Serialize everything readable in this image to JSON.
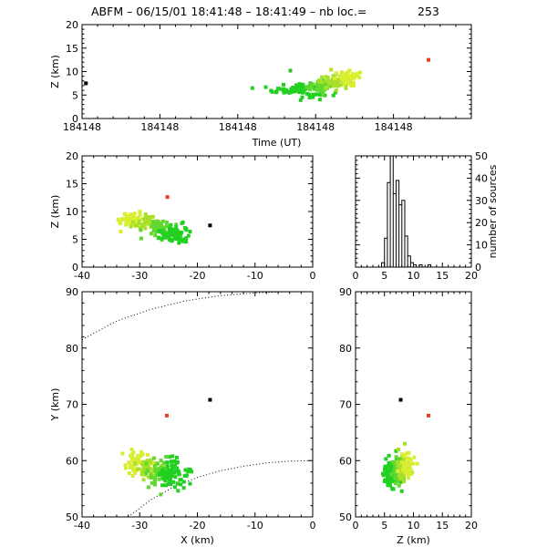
{
  "title": "ABFM – 06/15/01 18:41:48 – 18:41:49 – nb loc.=",
  "count": "253",
  "chart_data": [
    {
      "id": "time_height",
      "type": "scatter",
      "xlabel": "Time (UT)",
      "ylabel": "Z (km)",
      "xlim": [
        0,
        1
      ],
      "ylim": [
        0,
        20
      ],
      "xticks": [
        0.0,
        0.2,
        0.4,
        0.6,
        0.8
      ],
      "xticklabels": [
        "184148",
        "184148",
        "184148",
        "184148",
        "184148"
      ],
      "yticks": [
        0,
        5,
        10,
        15,
        20
      ],
      "points": [
        {
          "x": 0.01,
          "y": 7.5,
          "color": "#000000"
        },
        {
          "x": 0.89,
          "y": 12.5,
          "color": "#e8401c"
        },
        {
          "x": 0.535,
          "y": 10.2,
          "color": "#30c020"
        },
        {
          "x": 0.64,
          "y": 10.4,
          "color": "#b0e020"
        },
        {
          "x": 0.69,
          "y": 9.0,
          "color": "#e0f020"
        }
      ],
      "clusters": [
        {
          "cx": 0.56,
          "cy": 6.2,
          "sx": 0.035,
          "sy": 0.8,
          "n": 90,
          "color": "#22d022"
        },
        {
          "cx": 0.61,
          "cy": 6.9,
          "sx": 0.02,
          "sy": 0.6,
          "n": 40,
          "color": "#60d830"
        },
        {
          "cx": 0.65,
          "cy": 7.8,
          "sx": 0.02,
          "sy": 0.7,
          "n": 45,
          "color": "#a8e028"
        },
        {
          "cx": 0.69,
          "cy": 8.6,
          "sx": 0.02,
          "sy": 0.7,
          "n": 45,
          "color": "#d8ee30"
        }
      ]
    },
    {
      "id": "x_z",
      "type": "scatter",
      "xlabel": "",
      "ylabel": "Z (km)",
      "xlim": [
        -40,
        0
      ],
      "ylim": [
        0,
        20
      ],
      "xticks": [
        -40,
        -30,
        -20,
        -10,
        0
      ],
      "yticks": [
        0,
        5,
        10,
        15,
        20
      ],
      "points": [
        {
          "x": -17.8,
          "y": 7.5,
          "color": "#000000"
        },
        {
          "x": -25.2,
          "y": 12.6,
          "color": "#e8401c"
        }
      ],
      "clusters": [
        {
          "cx": -31.5,
          "cy": 8.5,
          "sx": 1.0,
          "sy": 0.7,
          "n": 50,
          "color": "#d8ee30"
        },
        {
          "cx": -29.0,
          "cy": 8.0,
          "sx": 1.0,
          "sy": 0.7,
          "n": 40,
          "color": "#a8e028"
        },
        {
          "cx": -26.5,
          "cy": 7.0,
          "sx": 1.0,
          "sy": 0.8,
          "n": 50,
          "color": "#60d830"
        },
        {
          "cx": -24.0,
          "cy": 5.9,
          "sx": 1.2,
          "sy": 0.8,
          "n": 80,
          "color": "#22d022"
        }
      ]
    },
    {
      "id": "height_histogram",
      "type": "line",
      "xlabel": "",
      "ylabel": "number of sources",
      "xlim": [
        0,
        20
      ],
      "ylim": [
        0,
        50
      ],
      "xticks": [
        0,
        5,
        10,
        15,
        20
      ],
      "yticks": [
        0,
        10,
        20,
        30,
        40,
        50
      ],
      "bins": [
        {
          "x0": 4.5,
          "x1": 5.0,
          "v": 2
        },
        {
          "x0": 5.0,
          "x1": 5.5,
          "v": 13
        },
        {
          "x0": 5.5,
          "x1": 6.0,
          "v": 38
        },
        {
          "x0": 6.0,
          "x1": 6.5,
          "v": 50
        },
        {
          "x0": 6.5,
          "x1": 7.0,
          "v": 33
        },
        {
          "x0": 7.0,
          "x1": 7.5,
          "v": 39
        },
        {
          "x0": 7.5,
          "x1": 8.0,
          "v": 28
        },
        {
          "x0": 8.0,
          "x1": 8.5,
          "v": 30
        },
        {
          "x0": 8.5,
          "x1": 9.0,
          "v": 14
        },
        {
          "x0": 9.0,
          "x1": 9.5,
          "v": 5
        },
        {
          "x0": 9.5,
          "x1": 10.0,
          "v": 2
        },
        {
          "x0": 10.0,
          "x1": 10.5,
          "v": 1
        },
        {
          "x0": 10.5,
          "x1": 11.0,
          "v": 0
        },
        {
          "x0": 11.0,
          "x1": 11.5,
          "v": 1
        },
        {
          "x0": 12.5,
          "x1": 13.0,
          "v": 1
        }
      ]
    },
    {
      "id": "plan_view",
      "type": "scatter",
      "xlabel": "X (km)",
      "ylabel": "Y (km)",
      "xlim": [
        -40,
        0
      ],
      "ylim": [
        50,
        90
      ],
      "xticks": [
        -40,
        -30,
        -20,
        -10,
        0
      ],
      "yticks": [
        50,
        60,
        70,
        80,
        90
      ],
      "points": [
        {
          "x": -17.8,
          "y": 70.8,
          "color": "#000000"
        },
        {
          "x": -25.3,
          "y": 68.0,
          "color": "#e8401c"
        }
      ],
      "clusters": [
        {
          "cx": -31.0,
          "cy": 59.5,
          "sx": 1.2,
          "sy": 1.2,
          "n": 50,
          "color": "#d8ee30"
        },
        {
          "cx": -28.5,
          "cy": 58.5,
          "sx": 1.0,
          "sy": 1.0,
          "n": 40,
          "color": "#a8e028"
        },
        {
          "cx": -26.5,
          "cy": 58.0,
          "sx": 1.2,
          "sy": 1.2,
          "n": 50,
          "color": "#60d830"
        },
        {
          "cx": -24.2,
          "cy": 57.5,
          "sx": 1.2,
          "sy": 1.3,
          "n": 80,
          "color": "#22d022"
        }
      ],
      "range_rings": [
        {
          "x": [
            -40,
            -34,
            -28,
            -22,
            -16,
            -10,
            -4,
            0
          ],
          "y": [
            81.5,
            84.8,
            86.9,
            88.4,
            89.3,
            89.8,
            90.0,
            90.0
          ]
        },
        {
          "x": [
            -32,
            -28,
            -24,
            -20,
            -16,
            -12,
            -8,
            -4,
            0
          ],
          "y": [
            50.0,
            53.1,
            55.4,
            57.0,
            58.2,
            59.0,
            59.6,
            59.9,
            60.0
          ]
        }
      ]
    },
    {
      "id": "z_y",
      "type": "scatter",
      "xlabel": "Z (km)",
      "ylabel": "",
      "xlim": [
        0,
        20
      ],
      "ylim": [
        50,
        90
      ],
      "xticks": [
        0,
        5,
        10,
        15,
        20
      ],
      "yticks": [
        50,
        60,
        70,
        80,
        90
      ],
      "points": [
        {
          "x": 7.8,
          "y": 70.8,
          "color": "#000000"
        },
        {
          "x": 12.6,
          "y": 68.0,
          "color": "#e8401c"
        }
      ],
      "clusters": [
        {
          "cx": 6.3,
          "cy": 57.8,
          "sx": 0.7,
          "sy": 1.5,
          "n": 90,
          "color": "#22d022"
        },
        {
          "cx": 7.2,
          "cy": 58.5,
          "sx": 0.6,
          "sy": 1.4,
          "n": 40,
          "color": "#60d830"
        },
        {
          "cx": 8.2,
          "cy": 58.5,
          "sx": 0.6,
          "sy": 1.4,
          "n": 45,
          "color": "#a8e028"
        },
        {
          "cx": 9.0,
          "cy": 59.2,
          "sx": 0.6,
          "sy": 1.2,
          "n": 45,
          "color": "#d8ee30"
        }
      ]
    }
  ]
}
